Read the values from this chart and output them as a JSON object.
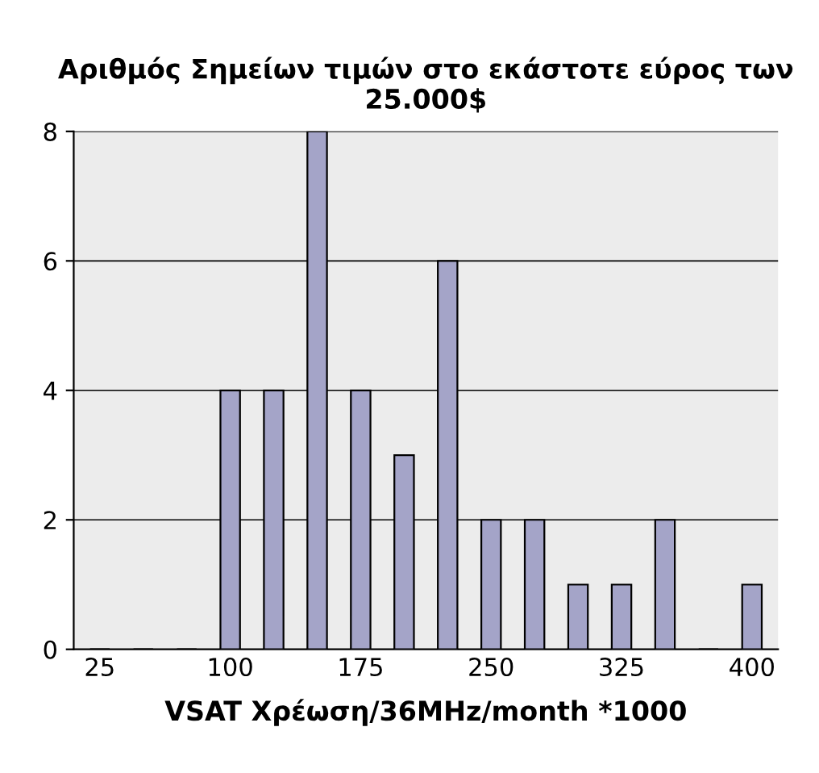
{
  "chart_data": {
    "type": "bar",
    "title": "Αριθμός Σημείων τιμών στο εκάστοτε εύρος των 25.000$",
    "xlabel": "VSAT Χρέωση/36MHz/month *1000",
    "categories": [
      "25",
      null,
      null,
      "100",
      null,
      null,
      "175",
      null,
      null,
      "250",
      null,
      null,
      "325",
      null,
      null,
      "400"
    ],
    "values": [
      0,
      0,
      0,
      4,
      4,
      8,
      4,
      3,
      6,
      2,
      2,
      1,
      1,
      2,
      0,
      1
    ],
    "color": "#a4a4c8",
    "ylim": [
      0,
      8
    ],
    "yticks": [
      0,
      2,
      4,
      6,
      8
    ],
    "grid": "y"
  }
}
